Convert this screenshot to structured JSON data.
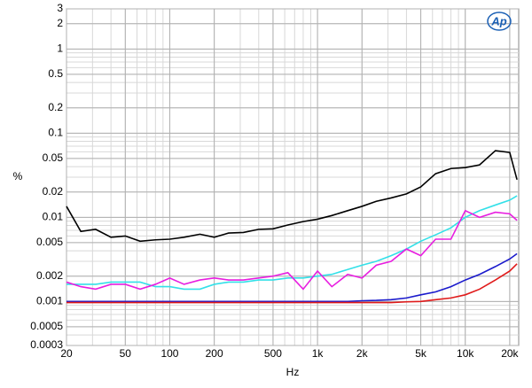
{
  "chart_data": {
    "type": "line",
    "logo": "Ap",
    "xlabel": "Hz",
    "ylabel": "%",
    "log_x": true,
    "log_y": true,
    "grid": true,
    "xlim": [
      20,
      23000
    ],
    "ylim": [
      0.0003,
      3
    ],
    "xticks": [
      20,
      50,
      100,
      200,
      500,
      {
        "value": 1000,
        "label": "1k"
      },
      {
        "value": 2000,
        "label": "2k"
      },
      {
        "value": 5000,
        "label": "5k"
      },
      {
        "value": 10000,
        "label": "10k"
      },
      {
        "value": 20000,
        "label": "20k"
      }
    ],
    "yticks": [
      3,
      2,
      1,
      0.5,
      0.2,
      0.1,
      0.05,
      0.02,
      0.01,
      0.005,
      0.002,
      0.001,
      0.0005,
      0.0003
    ],
    "x": [
      20,
      25,
      31.5,
      40,
      50,
      63,
      80,
      100,
      125,
      160,
      200,
      250,
      315,
      400,
      500,
      630,
      800,
      1000,
      1250,
      1600,
      2000,
      2500,
      3150,
      4000,
      5000,
      6300,
      8000,
      10000,
      12500,
      16000,
      20000,
      22400
    ],
    "series": [
      {
        "color": "#000000",
        "values": [
          0.0135,
          0.0068,
          0.0072,
          0.0058,
          0.006,
          0.0052,
          0.0054,
          0.0055,
          0.0058,
          0.0063,
          0.0058,
          0.0065,
          0.0066,
          0.0072,
          0.0073,
          0.0081,
          0.0089,
          0.0095,
          0.0105,
          0.012,
          0.0135,
          0.0155,
          0.017,
          0.019,
          0.023,
          0.033,
          0.038,
          0.039,
          0.042,
          0.062,
          0.059,
          0.028
        ]
      },
      {
        "color": "#33e0e8",
        "values": [
          0.0016,
          0.0016,
          0.0016,
          0.0017,
          0.0017,
          0.0017,
          0.0015,
          0.0015,
          0.0014,
          0.0014,
          0.0016,
          0.0017,
          0.0017,
          0.0018,
          0.0018,
          0.0019,
          0.0019,
          0.002,
          0.0021,
          0.0024,
          0.0027,
          0.003,
          0.0035,
          0.0042,
          0.0052,
          0.0062,
          0.0075,
          0.01,
          0.012,
          0.014,
          0.016,
          0.018
        ]
      },
      {
        "color": "#e81ee0",
        "values": [
          0.0017,
          0.0015,
          0.0014,
          0.0016,
          0.0016,
          0.0014,
          0.0016,
          0.0019,
          0.0016,
          0.0018,
          0.0019,
          0.0018,
          0.0018,
          0.0019,
          0.002,
          0.0022,
          0.0014,
          0.0023,
          0.0015,
          0.0021,
          0.0019,
          0.0027,
          0.003,
          0.0042,
          0.0035,
          0.0055,
          0.0055,
          0.012,
          0.01,
          0.0115,
          0.011,
          0.0092
        ]
      },
      {
        "color": "#1a1acc",
        "values": [
          0.001,
          0.001,
          0.001,
          0.001,
          0.001,
          0.001,
          0.001,
          0.001,
          0.001,
          0.001,
          0.001,
          0.001,
          0.001,
          0.001,
          0.001,
          0.001,
          0.001,
          0.001,
          0.001,
          0.001,
          0.00102,
          0.00103,
          0.00105,
          0.0011,
          0.0012,
          0.0013,
          0.0015,
          0.0018,
          0.0021,
          0.0026,
          0.0032,
          0.0037
        ]
      },
      {
        "color": "#e01a1a",
        "values": [
          0.00097,
          0.00097,
          0.00097,
          0.00097,
          0.00097,
          0.00097,
          0.00097,
          0.00097,
          0.00097,
          0.00097,
          0.00097,
          0.00097,
          0.00097,
          0.00097,
          0.00097,
          0.00097,
          0.00097,
          0.00097,
          0.00097,
          0.00097,
          0.00097,
          0.00097,
          0.00097,
          0.00099,
          0.001,
          0.00105,
          0.0011,
          0.0012,
          0.0014,
          0.0018,
          0.0023,
          0.0028
        ]
      }
    ]
  }
}
